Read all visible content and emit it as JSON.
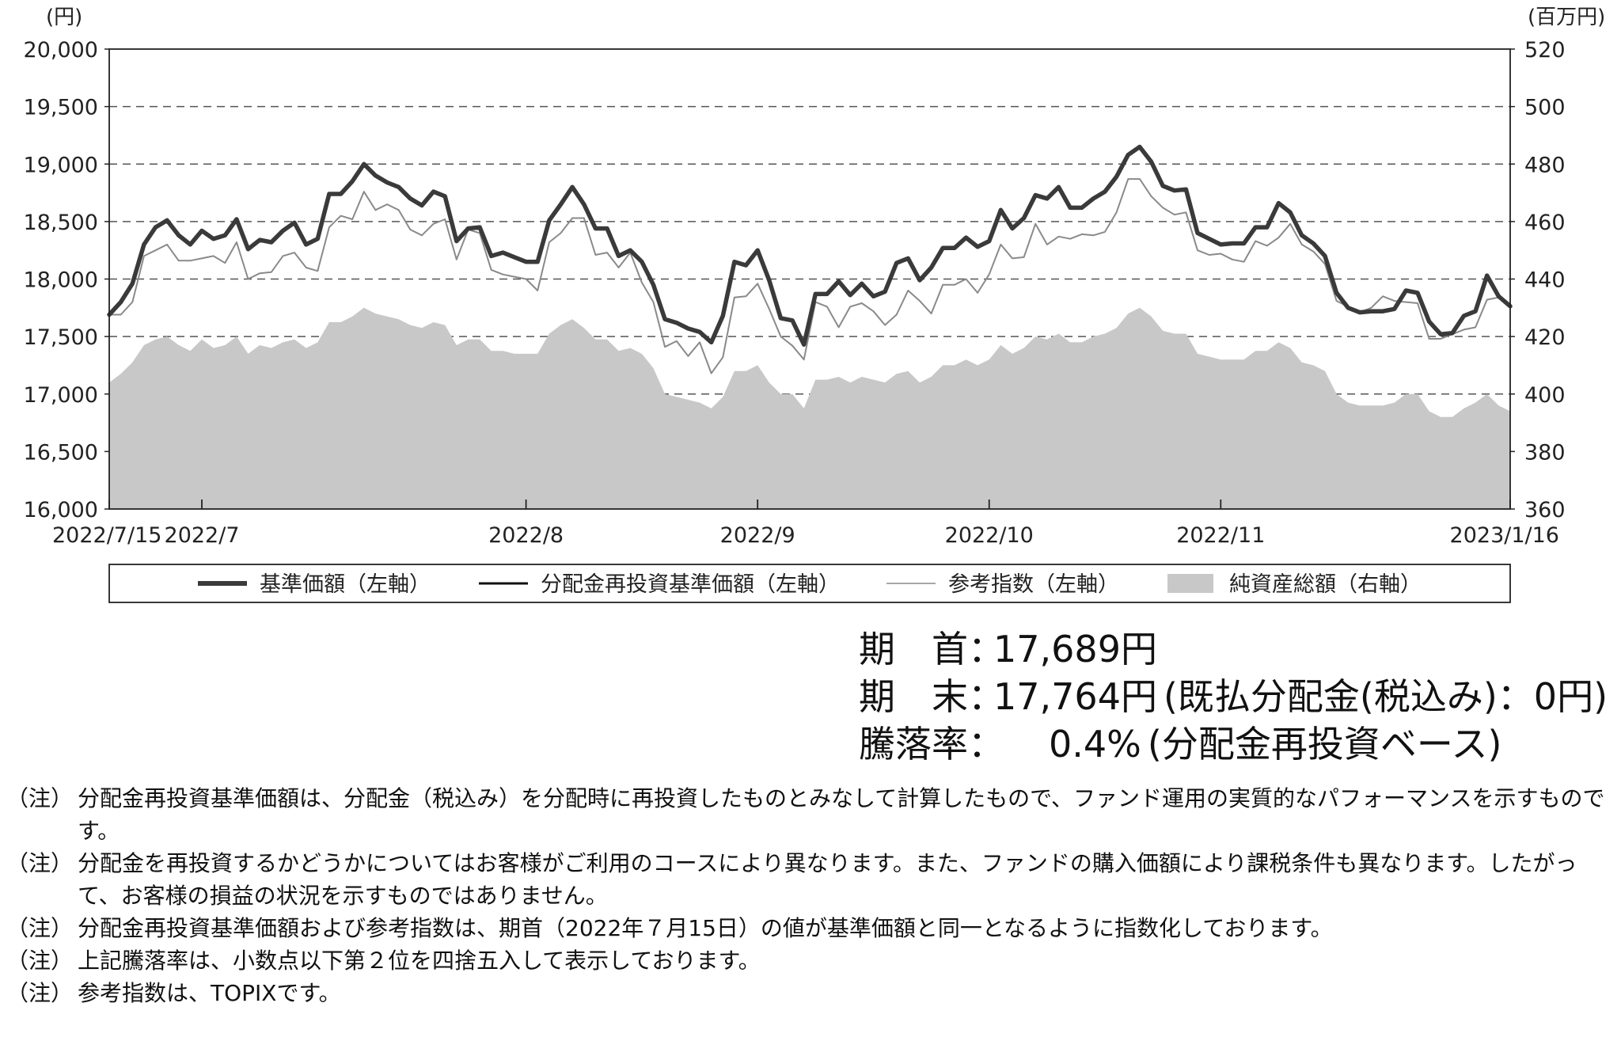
{
  "chart_data": {
    "type": "line",
    "left_axis_unit": "(円)",
    "right_axis_unit": "(百万円)",
    "left_ylim": [
      16000,
      20000
    ],
    "right_ylim": [
      360,
      520
    ],
    "left_ticks": [
      "20,000",
      "19,500",
      "19,000",
      "18,500",
      "18,000",
      "17,500",
      "17,000",
      "16,500",
      "16,000"
    ],
    "right_ticks": [
      "520",
      "500",
      "480",
      "460",
      "440",
      "420",
      "400",
      "380",
      "360"
    ],
    "x_tick_labels": [
      "2022/7/15",
      "2022/7",
      "2022/8",
      "2022/9",
      "2022/10",
      "2022/11",
      "2023/1/16"
    ],
    "grid": "horizontal dashed",
    "legend": [
      {
        "label": "基準価額（左軸）",
        "style": "thick-line",
        "color": "#3a3a3a"
      },
      {
        "label": "分配金再投資基準価額（左軸）",
        "style": "line",
        "color": "#111111"
      },
      {
        "label": "参考指数（左軸）",
        "style": "thin-line",
        "color": "#8a8a8a"
      },
      {
        "label": "純資産総額（右軸）",
        "style": "area",
        "color": "#c8c8c8"
      }
    ],
    "series": [
      {
        "name": "基準価額（左軸）",
        "values": [
          17690,
          17800,
          17960,
          18300,
          18450,
          18510,
          18380,
          18300,
          18420,
          18350,
          18380,
          18520,
          18260,
          18340,
          18320,
          18420,
          18490,
          18300,
          18350,
          18740,
          18740,
          18850,
          19000,
          18900,
          18840,
          18800,
          18700,
          18640,
          18760,
          18720,
          18330,
          18440,
          18450,
          18200,
          18230,
          18190,
          18150,
          18150,
          18510,
          18650,
          18800,
          18650,
          18440,
          18440,
          18200,
          18250,
          18150,
          17950,
          17650,
          17620,
          17570,
          17540,
          17450,
          17680,
          18150,
          18120,
          18250,
          17990,
          17660,
          17640,
          17430,
          17870,
          17870,
          17980,
          17860,
          17960,
          17850,
          17890,
          18140,
          18180,
          17990,
          18100,
          18270,
          18270,
          18360,
          18280,
          18330,
          18600,
          18440,
          18530,
          18730,
          18700,
          18800,
          18620,
          18620,
          18700,
          18760,
          18890,
          19080,
          19150,
          19020,
          18810,
          18770,
          18780,
          18400,
          18350,
          18300,
          18310,
          18310,
          18450,
          18450,
          18660,
          18580,
          18380,
          18310,
          18200,
          17880,
          17750,
          17710,
          17720,
          17720,
          17740,
          17900,
          17880,
          17630,
          17520,
          17530,
          17680,
          17720,
          18030,
          17850,
          17764
        ]
      },
      {
        "name": "参考指数（左軸）",
        "values": [
          17690,
          17690,
          17800,
          18200,
          18250,
          18300,
          18160,
          18160,
          18180,
          18200,
          18140,
          18320,
          18000,
          18050,
          18060,
          18200,
          18230,
          18100,
          18070,
          18450,
          18550,
          18520,
          18760,
          18600,
          18650,
          18600,
          18430,
          18380,
          18480,
          18520,
          18170,
          18430,
          18400,
          18080,
          18040,
          18020,
          18000,
          17900,
          18320,
          18400,
          18530,
          18530,
          18210,
          18230,
          18100,
          18230,
          17970,
          17800,
          17410,
          17460,
          17330,
          17450,
          17180,
          17320,
          17840,
          17850,
          17960,
          17740,
          17500,
          17420,
          17300,
          17800,
          17760,
          17580,
          17760,
          17790,
          17720,
          17600,
          17690,
          17900,
          17810,
          17700,
          17950,
          17950,
          18000,
          17880,
          18040,
          18300,
          18180,
          18190,
          18480,
          18300,
          18370,
          18350,
          18390,
          18380,
          18410,
          18580,
          18870,
          18870,
          18720,
          18620,
          18560,
          18580,
          18250,
          18210,
          18220,
          18170,
          18150,
          18330,
          18290,
          18360,
          18480,
          18300,
          18240,
          18130,
          17810,
          17760,
          17710,
          17750,
          17850,
          17810,
          17800,
          17790,
          17480,
          17480,
          17520,
          17560,
          17580,
          17820,
          17840,
          17764
        ]
      },
      {
        "name": "純資産総額（右軸）",
        "values": [
          404,
          407,
          411,
          417,
          419,
          420,
          417,
          415,
          419,
          416,
          417,
          420,
          414,
          417,
          416,
          418,
          419,
          416,
          418,
          425,
          425,
          427,
          430,
          428,
          427,
          426,
          424,
          423,
          425,
          424,
          417,
          419,
          419,
          415,
          415,
          414,
          414,
          414,
          421,
          424,
          426,
          423,
          419,
          419,
          415,
          416,
          414,
          409,
          400,
          399,
          398,
          397,
          395,
          399,
          408,
          408,
          410,
          404,
          400,
          400,
          395,
          405,
          405,
          406,
          404,
          406,
          405,
          404,
          407,
          408,
          404,
          406,
          410,
          410,
          412,
          410,
          412,
          417,
          414,
          416,
          420,
          419,
          421,
          418,
          418,
          420,
          421,
          423,
          428,
          430,
          427,
          422,
          421,
          421,
          414,
          413,
          412,
          412,
          412,
          415,
          415,
          418,
          416,
          411,
          410,
          408,
          400,
          397,
          396,
          396,
          396,
          397,
          400,
          400,
          394,
          392,
          392,
          395,
          397,
          400,
          396,
          394
        ]
      }
    ],
    "x_tick_index": [
      0,
      8,
      36,
      56,
      76,
      96,
      121
    ]
  },
  "summary": {
    "start_label": "期　首：",
    "start_value": "17,689円",
    "end_label": "期　末：",
    "end_value": "17,764円",
    "end_note": "(既払分配金(税込み)：0円)",
    "change_label": "騰落率：",
    "change_value": "0.4%",
    "change_note": "(分配金再投資ベース)"
  },
  "notes": [
    {
      "mark": "（注）",
      "text": "分配金再投資基準価額は、分配金（税込み）を分配時に再投資したものとみなして計算したもので、ファンド運用の実質的なパフォーマンスを示すものです。"
    },
    {
      "mark": "（注）",
      "text": "分配金を再投資するかどうかについてはお客様がご利用のコースにより異なります。また、ファンドの購入価額により課税条件も異なります。したがって、お客様の損益の状況を示すものではありません。"
    },
    {
      "mark": "（注）",
      "text": "分配金再投資基準価額および参考指数は、期首（2022年７月15日）の値が基準価額と同一となるように指数化しております。"
    },
    {
      "mark": "（注）",
      "text": "上記騰落率は、小数点以下第２位を四捨五入して表示しております。"
    },
    {
      "mark": "（注）",
      "text": "参考指数は、TOPIXです。"
    }
  ]
}
